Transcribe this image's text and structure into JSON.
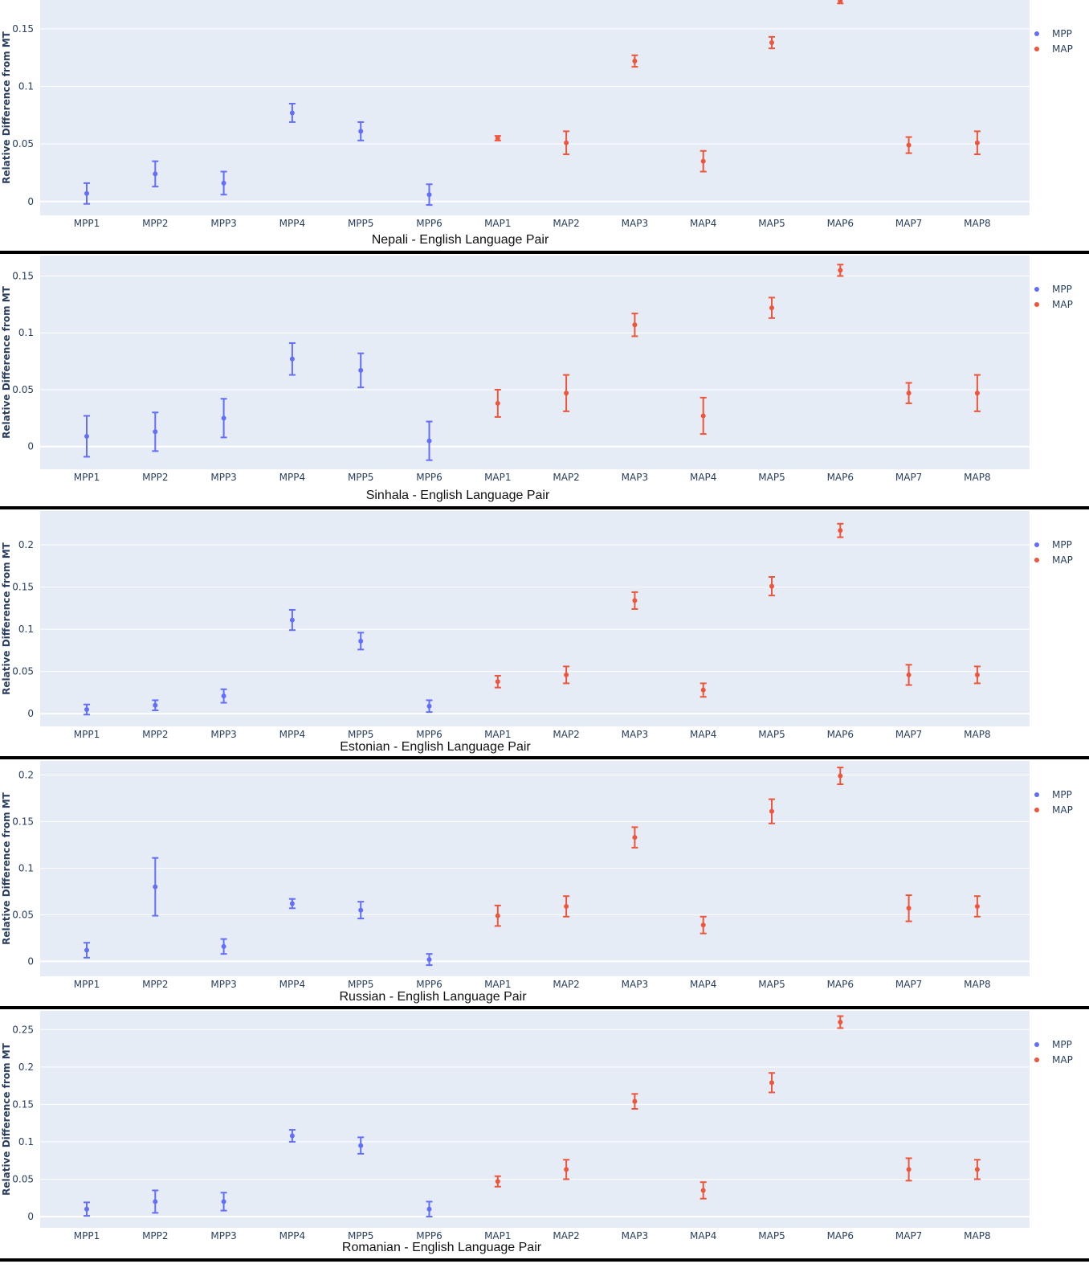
{
  "colors": {
    "mpp": "#636efa",
    "map": "#ef553b",
    "plot_bg": "#e5ecf6",
    "grid": "#ffffff"
  },
  "chart_data": [
    {
      "type": "scatter",
      "title": "",
      "xlabel": "Nepali - English Language Pair",
      "ylabel": "Relative Difference from MT",
      "ylim": [
        -0.012,
        0.175
      ],
      "yticks": [
        0,
        0.05,
        0.1,
        0.15
      ],
      "ytick_labels": [
        "0",
        "0.05",
        "0.1",
        "0.15"
      ],
      "grid": true,
      "legend": "top-right",
      "series": [
        {
          "name": "MPP",
          "x": [
            "MPP1",
            "MPP2",
            "MPP3",
            "MPP4",
            "MPP5",
            "MPP6"
          ],
          "y": [
            0.007,
            0.024,
            0.016,
            0.077,
            0.061,
            0.006
          ],
          "err": [
            0.009,
            0.011,
            0.01,
            0.008,
            0.008,
            0.009
          ]
        },
        {
          "name": "MAP",
          "x": [
            "MAP1",
            "MAP2",
            "MAP3",
            "MAP4",
            "MAP5",
            "MAP6",
            "MAP7",
            "MAP8"
          ],
          "y": [
            0.055,
            0.051,
            0.122,
            0.035,
            0.138,
            0.174,
            0.049,
            0.051
          ],
          "err": [
            0.002,
            0.01,
            0.005,
            0.009,
            0.005,
            0.002,
            0.007,
            0.01
          ]
        }
      ]
    },
    {
      "type": "scatter",
      "title": "",
      "xlabel": "Sinhala - English Language Pair",
      "ylabel": "Relative Difference from MT",
      "ylim": [
        -0.02,
        0.168
      ],
      "yticks": [
        0,
        0.05,
        0.1,
        0.15
      ],
      "ytick_labels": [
        "0",
        "0.05",
        "0.1",
        "0.15"
      ],
      "grid": true,
      "legend": "top-right",
      "series": [
        {
          "name": "MPP",
          "x": [
            "MPP1",
            "MPP2",
            "MPP3",
            "MPP4",
            "MPP5",
            "MPP6"
          ],
          "y": [
            0.009,
            0.013,
            0.025,
            0.077,
            0.067,
            0.005
          ],
          "err": [
            0.018,
            0.017,
            0.017,
            0.014,
            0.015,
            0.017
          ]
        },
        {
          "name": "MAP",
          "x": [
            "MAP1",
            "MAP2",
            "MAP3",
            "MAP4",
            "MAP5",
            "MAP6",
            "MAP7",
            "MAP8"
          ],
          "y": [
            0.038,
            0.047,
            0.107,
            0.027,
            0.122,
            0.155,
            0.047,
            0.047
          ],
          "err": [
            0.012,
            0.016,
            0.01,
            0.016,
            0.009,
            0.005,
            0.009,
            0.016
          ]
        }
      ]
    },
    {
      "type": "scatter",
      "title": "",
      "xlabel": "Estonian - English Language Pair",
      "ylabel": "Relative Difference from MT",
      "ylim": [
        -0.015,
        0.24
      ],
      "yticks": [
        0,
        0.05,
        0.1,
        0.15,
        0.2
      ],
      "ytick_labels": [
        "0",
        "0.05",
        "0.1",
        "0.15",
        "0.2"
      ],
      "grid": true,
      "legend": "top-right",
      "series": [
        {
          "name": "MPP",
          "x": [
            "MPP1",
            "MPP2",
            "MPP3",
            "MPP4",
            "MPP5",
            "MPP6"
          ],
          "y": [
            0.005,
            0.01,
            0.021,
            0.111,
            0.086,
            0.009
          ],
          "err": [
            0.006,
            0.006,
            0.008,
            0.012,
            0.01,
            0.007
          ]
        },
        {
          "name": "MAP",
          "x": [
            "MAP1",
            "MAP2",
            "MAP3",
            "MAP4",
            "MAP5",
            "MAP6",
            "MAP7",
            "MAP8"
          ],
          "y": [
            0.038,
            0.046,
            0.134,
            0.028,
            0.151,
            0.217,
            0.046,
            0.046
          ],
          "err": [
            0.007,
            0.01,
            0.01,
            0.008,
            0.011,
            0.008,
            0.012,
            0.01
          ]
        }
      ]
    },
    {
      "type": "scatter",
      "title": "",
      "xlabel": "Russian - English Language Pair",
      "ylabel": "Relative Difference from MT",
      "ylim": [
        -0.016,
        0.215
      ],
      "yticks": [
        0,
        0.05,
        0.1,
        0.15,
        0.2
      ],
      "ytick_labels": [
        "0",
        "0.05",
        "0.1",
        "0.15",
        "0.2"
      ],
      "grid": true,
      "legend": "top-right",
      "series": [
        {
          "name": "MPP",
          "x": [
            "MPP1",
            "MPP2",
            "MPP3",
            "MPP4",
            "MPP5",
            "MPP6"
          ],
          "y": [
            0.012,
            0.08,
            0.016,
            0.062,
            0.055,
            0.002
          ],
          "err": [
            0.008,
            0.031,
            0.008,
            0.005,
            0.009,
            0.006
          ]
        },
        {
          "name": "MAP",
          "x": [
            "MAP1",
            "MAP2",
            "MAP3",
            "MAP4",
            "MAP5",
            "MAP6",
            "MAP7",
            "MAP8"
          ],
          "y": [
            0.049,
            0.059,
            0.133,
            0.039,
            0.161,
            0.199,
            0.057,
            0.059
          ],
          "err": [
            0.011,
            0.011,
            0.011,
            0.009,
            0.013,
            0.009,
            0.014,
            0.011
          ]
        }
      ]
    },
    {
      "type": "scatter",
      "title": "",
      "xlabel": "Romanian - English Language Pair",
      "ylabel": "Relative Difference from MT",
      "ylim": [
        -0.015,
        0.275
      ],
      "yticks": [
        0,
        0.05,
        0.1,
        0.15,
        0.2,
        0.25
      ],
      "ytick_labels": [
        "0",
        "0.05",
        "0.1",
        "0.15",
        "0.2",
        "0.25"
      ],
      "grid": true,
      "legend": "top-right",
      "series": [
        {
          "name": "MPP",
          "x": [
            "MPP1",
            "MPP2",
            "MPP3",
            "MPP4",
            "MPP5",
            "MPP6"
          ],
          "y": [
            0.01,
            0.02,
            0.02,
            0.108,
            0.095,
            0.01
          ],
          "err": [
            0.009,
            0.015,
            0.012,
            0.008,
            0.011,
            0.01
          ]
        },
        {
          "name": "MAP",
          "x": [
            "MAP1",
            "MAP2",
            "MAP3",
            "MAP4",
            "MAP5",
            "MAP6",
            "MAP7",
            "MAP8"
          ],
          "y": [
            0.047,
            0.063,
            0.154,
            0.035,
            0.179,
            0.26,
            0.063,
            0.063
          ],
          "err": [
            0.007,
            0.013,
            0.01,
            0.011,
            0.013,
            0.008,
            0.015,
            0.013
          ]
        }
      ]
    }
  ]
}
